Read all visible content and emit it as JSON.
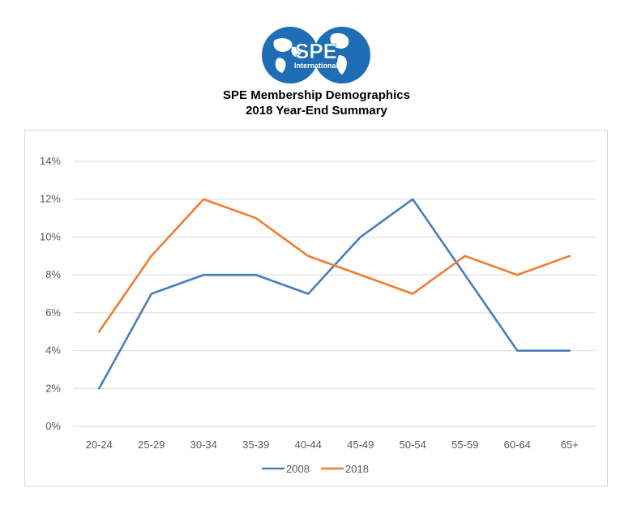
{
  "logo": {
    "text_main": "SPE",
    "text_sub": "International",
    "color": "#1f6db5"
  },
  "header": {
    "title_line1": "SPE Membership Demographics",
    "title_line2": "2018 Year-End Summary"
  },
  "chart_data": {
    "type": "line",
    "categories": [
      "20-24",
      "25-29",
      "30-34",
      "35-39",
      "40-44",
      "45-49",
      "50-54",
      "55-59",
      "60-64",
      "65+"
    ],
    "series": [
      {
        "name": "2008",
        "color": "#4a7ebb",
        "values": [
          2,
          7,
          8,
          8,
          7,
          10,
          12,
          8,
          4,
          4
        ]
      },
      {
        "name": "2018",
        "color": "#ed7d31",
        "values": [
          5,
          9,
          12,
          11,
          9,
          8,
          7,
          9,
          8,
          9
        ]
      }
    ],
    "ylim": [
      0,
      14
    ],
    "yticks": [
      "0%",
      "2%",
      "4%",
      "6%",
      "8%",
      "10%",
      "12%",
      "14%"
    ],
    "ytick_values": [
      0,
      2,
      4,
      6,
      8,
      10,
      12,
      14
    ],
    "grid": true,
    "legend": "bottom",
    "title": "SPE Membership Demographics 2018 Year-End Summary",
    "xlabel": "",
    "ylabel": ""
  }
}
